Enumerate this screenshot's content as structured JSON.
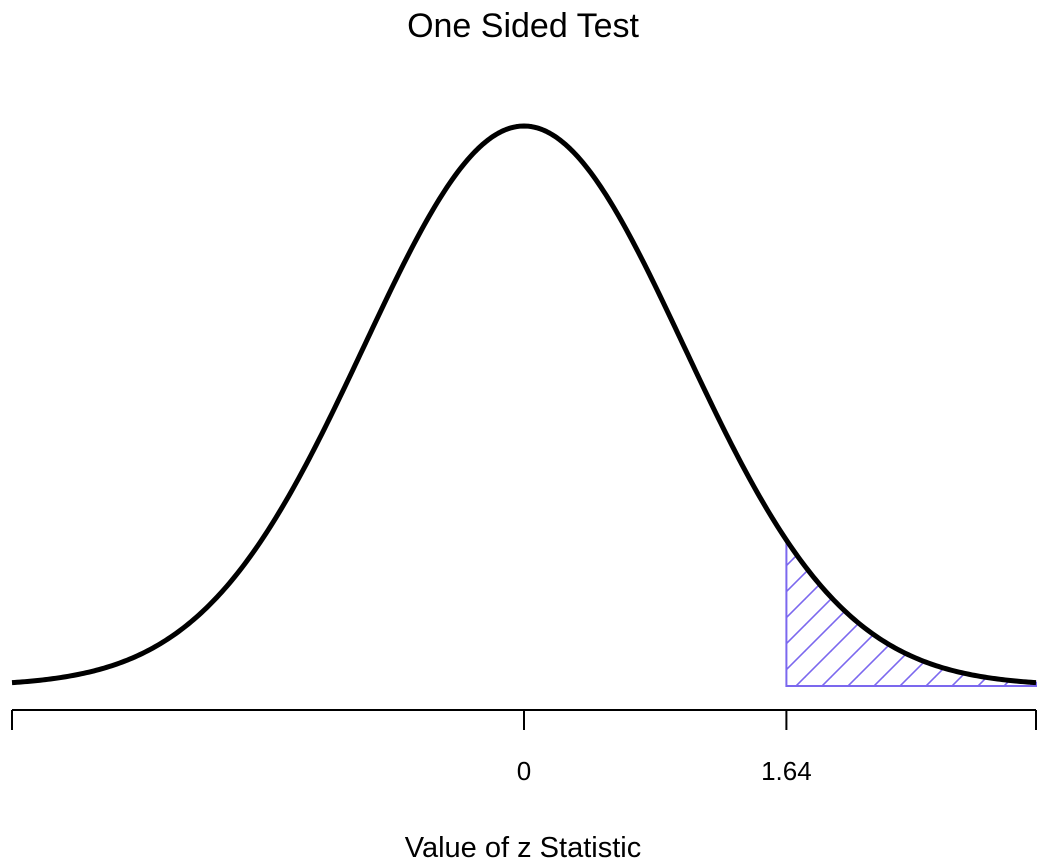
{
  "chart_data": {
    "type": "area",
    "title": "One Sided Test",
    "xlabel": "Value of z Statistic",
    "ylabel": "",
    "distribution": "standard normal density",
    "xlim": [
      -3.2,
      3.2
    ],
    "x_ticks": [
      -3.2,
      0,
      1.64,
      3.2
    ],
    "x_tick_labels": [
      "",
      "0",
      "1.64",
      ""
    ],
    "shaded_region": {
      "from": 1.64,
      "to": 3.2,
      "fill_pattern": "diagonal-hatch",
      "color": "#7b68ee"
    },
    "curve_color": "#000000",
    "grid": false,
    "legend": "none"
  }
}
